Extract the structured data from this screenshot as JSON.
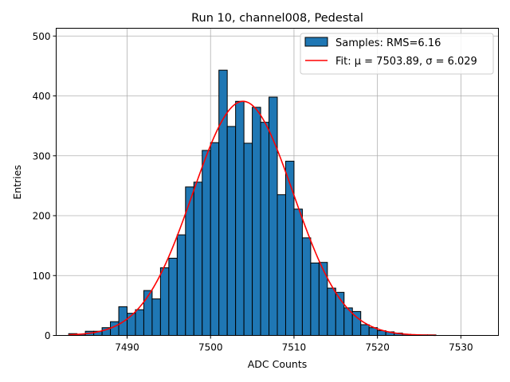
{
  "chart_data": {
    "type": "bar",
    "title": "Run 10, channel008, Pedestal",
    "xlabel": "ADC Counts",
    "ylabel": "Entries",
    "xlim": [
      7481.5,
      7534.5
    ],
    "ylim": [
      0,
      513
    ],
    "xticks": [
      7490,
      7500,
      7510,
      7520,
      7530
    ],
    "yticks": [
      0,
      100,
      200,
      300,
      400,
      500
    ],
    "grid": true,
    "legend_position": "upper right",
    "bin_width": 1,
    "histogram": {
      "name": "Samples: RMS=6.16",
      "color": "#1f77b4",
      "bin_starts": [
        7483,
        7484,
        7485,
        7486,
        7487,
        7488,
        7489,
        7490,
        7491,
        7492,
        7493,
        7494,
        7495,
        7496,
        7497,
        7498,
        7499,
        7500,
        7501,
        7502,
        7503,
        7504,
        7505,
        7506,
        7507,
        7508,
        7509,
        7510,
        7511,
        7512,
        7513,
        7514,
        7515,
        7516,
        7517,
        7518,
        7519,
        7520,
        7521,
        7522,
        7523,
        7524,
        7525,
        7526
      ],
      "values": [
        3,
        2,
        7,
        7,
        13,
        23,
        48,
        37,
        43,
        75,
        61,
        113,
        129,
        168,
        248,
        256,
        309,
        322,
        443,
        349,
        391,
        321,
        381,
        356,
        398,
        235,
        291,
        211,
        163,
        121,
        122,
        79,
        72,
        46,
        40,
        18,
        13,
        8,
        6,
        4,
        2,
        1,
        1,
        1
      ]
    },
    "fit": {
      "name": "Fit: $\\mu$ = 7503.89, $\\sigma$ = 6.029",
      "legend_text": "Fit: μ = 7503.89, σ = 6.029",
      "color": "#ff0000",
      "mu": 7503.89,
      "sigma": 6.029,
      "amplitude": 391,
      "x_range": [
        7483,
        7527
      ]
    }
  }
}
